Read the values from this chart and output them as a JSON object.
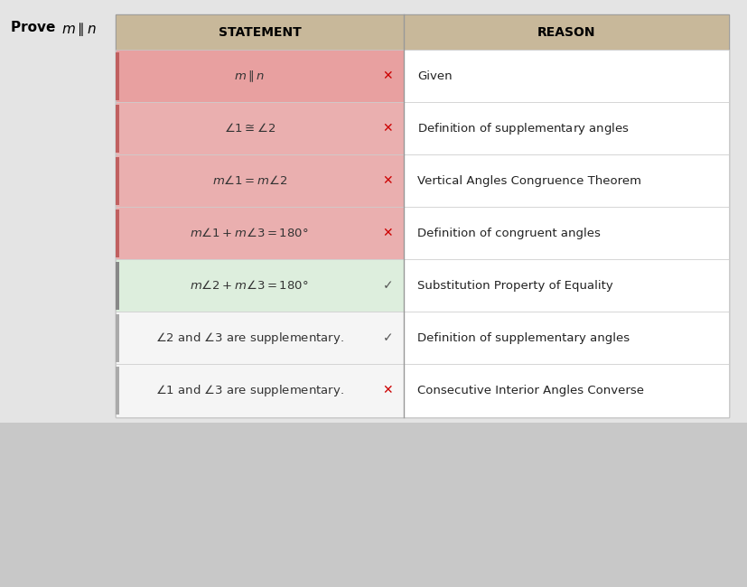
{
  "title_plain": "Prove ",
  "title_math": "$m \\parallel n$",
  "header_bg": "#c8b89a",
  "header_text_color": "#000000",
  "col1_header": "STATEMENT",
  "col2_header": "REASON",
  "rows": [
    {
      "statement": "$m \\parallel n$",
      "reason": "Given",
      "marker": "x",
      "stmt_bg": "#e8a0a0",
      "left_bar": "#c06060"
    },
    {
      "statement": "$\\angle 1 \\cong \\angle 2$",
      "reason": "Definition of $\\mathsf{s}$upplementary angles",
      "marker": "x",
      "stmt_bg": "#eaafaf",
      "left_bar": "#c06060"
    },
    {
      "statement": "$m\\angle 1 = m\\angle 2$",
      "reason": "Vertical Angles Congruence Theorem",
      "marker": "x",
      "stmt_bg": "#eaafaf",
      "left_bar": "#c06060"
    },
    {
      "statement": "$m\\angle 1 + m\\angle 3 = 180°$",
      "reason": "Definition of congruent angles",
      "marker": "x",
      "stmt_bg": "#eaafaf",
      "left_bar": "#c06060"
    },
    {
      "statement": "$m\\angle 2 + m\\angle 3 = 180°$",
      "reason": "Substitution Property of Equality",
      "marker": "check",
      "stmt_bg": "#ddeedd",
      "left_bar": "#888888"
    },
    {
      "statement": "$\\angle 2$ and $\\angle 3$ are supplementary.",
      "reason": "Definition of supplementary angles",
      "marker": "check",
      "stmt_bg": "#f5f5f5",
      "left_bar": "#aaaaaa"
    },
    {
      "statement": "$\\angle 1$ and $\\angle 3$ are supplementary.",
      "reason": "Consecutive Interior Angles Converse",
      "marker": "x",
      "stmt_bg": "#f5f5f5",
      "left_bar": "#aaaaaa"
    }
  ],
  "page_bg": "#c8c8c8",
  "white_card_bg": "#e8e8e8",
  "table_bg": "#ffffff",
  "border_color": "#bbbbbb",
  "x_color": "#cc0000",
  "check_color": "#555555",
  "angle_label_color": "#cc0000"
}
